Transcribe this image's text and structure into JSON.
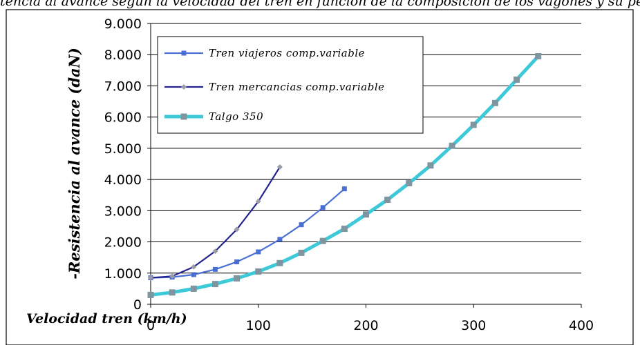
{
  "top_text": "...esistencia al avance según la velocidad del tren en función de la composición de los vagones y su peso (t)",
  "chart_data": {
    "type": "line",
    "xlabel": "Velocidad tren (km/h)",
    "ylabel": "-Resistencia  al avance (daN)",
    "xlim": [
      0,
      400
    ],
    "ylim": [
      0,
      9000
    ],
    "x_ticks": [
      "0",
      "100",
      "200",
      "300",
      "400"
    ],
    "y_ticks": [
      "0",
      "1.000",
      "2.000",
      "3.000",
      "4.000",
      "5.000",
      "6.000",
      "7.000",
      "8.000",
      "9.000"
    ],
    "x_tick_values": [
      0,
      100,
      200,
      300,
      400
    ],
    "y_tick_values": [
      0,
      1000,
      2000,
      3000,
      4000,
      5000,
      6000,
      7000,
      8000,
      9000
    ],
    "grid": "horizontal",
    "legend_position": "top-left",
    "series": [
      {
        "name": "Tren viajeros comp.variable",
        "color": "#4a6fd4",
        "marker": "square",
        "x": [
          0,
          20,
          40,
          60,
          80,
          100,
          120,
          140,
          160,
          180
        ],
        "y": [
          850,
          870,
          950,
          1120,
          1360,
          1680,
          2080,
          2550,
          3100,
          3700
        ]
      },
      {
        "name": "Tren mercancias comp.variable",
        "color": "#23238e",
        "marker": "diamond",
        "x": [
          0,
          20,
          40,
          60,
          80,
          100,
          120
        ],
        "y": [
          850,
          900,
          1200,
          1700,
          2400,
          3300,
          4400
        ]
      },
      {
        "name": "Talgo 350",
        "color": "#3ec9d9",
        "marker": "square",
        "x": [
          0,
          20,
          40,
          60,
          80,
          100,
          120,
          140,
          160,
          180,
          200,
          220,
          240,
          260,
          280,
          300,
          320,
          340,
          360
        ],
        "y": [
          300,
          380,
          500,
          650,
          830,
          1050,
          1320,
          1650,
          2030,
          2420,
          2880,
          3350,
          3880,
          4450,
          5080,
          5750,
          6450,
          7200,
          7950
        ]
      }
    ]
  }
}
